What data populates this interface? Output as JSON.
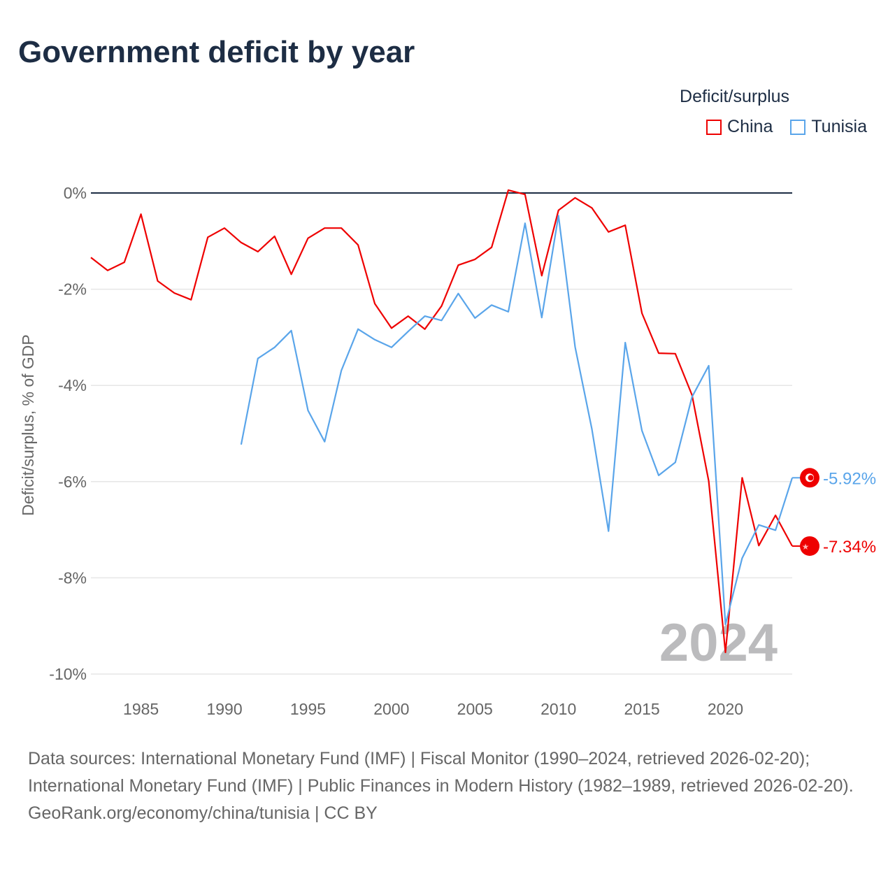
{
  "title": "Government deficit by year",
  "legend": {
    "title": "Deficit/surplus",
    "items": [
      {
        "name": "China",
        "color": "#ee0000"
      },
      {
        "name": "Tunisia",
        "color": "#5aa5ea"
      }
    ]
  },
  "chart_data": {
    "type": "line",
    "title": "Government deficit by year",
    "xlabel": "",
    "ylabel": "Deficit/surplus, % of GDP",
    "xlim": [
      1982,
      2024
    ],
    "ylim": [
      -10,
      0
    ],
    "x_ticks": [
      1985,
      1990,
      1995,
      2000,
      2005,
      2010,
      2015,
      2020
    ],
    "y_ticks": [
      0,
      -2,
      -4,
      -6,
      -8,
      -10
    ],
    "y_tick_labels": [
      "0%",
      "-2%",
      "-4%",
      "-6%",
      "-8%",
      "-10%"
    ],
    "grid": true,
    "legend_position": "top-right",
    "year_watermark": "2024",
    "series": [
      {
        "name": "China",
        "color": "#ee0000",
        "end_label": "-7.34%",
        "x": [
          1982,
          1983,
          1984,
          1985,
          1986,
          1987,
          1988,
          1989,
          1990,
          1991,
          1992,
          1993,
          1994,
          1995,
          1996,
          1997,
          1998,
          1999,
          2000,
          2001,
          2002,
          2003,
          2004,
          2005,
          2006,
          2007,
          2008,
          2009,
          2010,
          2011,
          2012,
          2013,
          2014,
          2015,
          2016,
          2017,
          2018,
          2019,
          2020,
          2021,
          2022,
          2023,
          2024
        ],
        "y": [
          -1.34,
          -1.61,
          -1.44,
          -0.44,
          -1.83,
          -2.08,
          -2.22,
          -0.92,
          -0.73,
          -1.03,
          -1.22,
          -0.9,
          -1.69,
          -0.94,
          -0.73,
          -0.73,
          -1.08,
          -2.3,
          -2.81,
          -2.56,
          -2.83,
          -2.35,
          -1.5,
          -1.38,
          -1.13,
          0.06,
          -0.03,
          -1.72,
          -0.36,
          -0.1,
          -0.31,
          -0.81,
          -0.67,
          -2.5,
          -3.33,
          -3.34,
          -4.2,
          -5.99,
          -9.55,
          -5.92,
          -7.33,
          -6.7,
          -7.34
        ]
      },
      {
        "name": "Tunisia",
        "color": "#5aa5ea",
        "end_label": "-5.92%",
        "x": [
          1991,
          1992,
          1993,
          1994,
          1995,
          1996,
          1997,
          1998,
          1999,
          2000,
          2001,
          2002,
          2003,
          2004,
          2005,
          2006,
          2007,
          2008,
          2009,
          2010,
          2011,
          2012,
          2013,
          2014,
          2015,
          2016,
          2017,
          2018,
          2019,
          2020,
          2021,
          2022,
          2023,
          2024
        ],
        "y": [
          -5.23,
          -3.44,
          -3.21,
          -2.86,
          -4.52,
          -5.17,
          -3.69,
          -2.83,
          -3.05,
          -3.21,
          -2.88,
          -2.56,
          -2.65,
          -2.09,
          -2.6,
          -2.33,
          -2.47,
          -0.63,
          -2.59,
          -0.47,
          -3.2,
          -4.9,
          -7.03,
          -3.11,
          -4.94,
          -5.87,
          -5.6,
          -4.24,
          -3.59,
          -8.97,
          -7.59,
          -6.9,
          -7.01,
          -5.92
        ]
      }
    ]
  },
  "footer": {
    "sources": "Data sources: International Monetary Fund (IMF) | Fiscal Monitor (1990–2024, retrieved 2026-02-20); International Monetary Fund (IMF) | Public Finances in Modern History (1982–1989, retrieved 2026-02-20).",
    "credit": "GeoRank.org/economy/china/tunisia | CC BY"
  }
}
